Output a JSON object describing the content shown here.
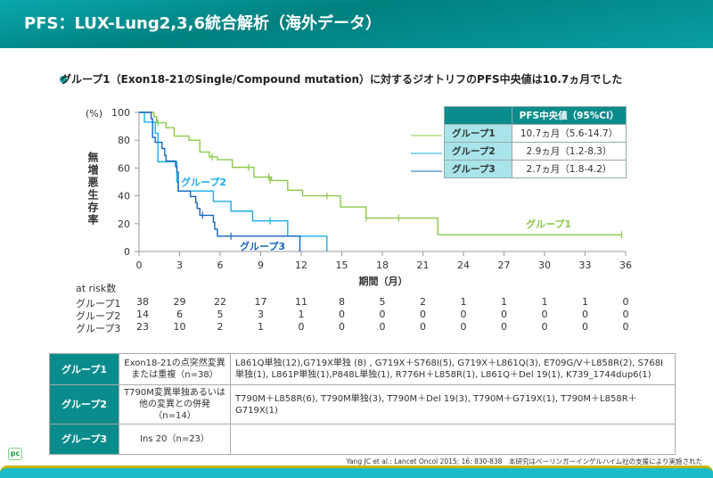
{
  "header": {
    "title": "PFS：LUX-Lung2,3,6統合解析（海外データ）"
  },
  "subtitle": "グループ1（Exon18-21のSingle/Compound mutation）に対するジオトリフのPFS中央値は10.7ヵ月でした",
  "colors": {
    "group1": "#8cc84b",
    "group2": "#1aaee8",
    "group3": "#1565c0",
    "teal": "#0a8c8c"
  },
  "chart_data": {
    "type": "line",
    "subtype": "kaplan-meier step",
    "ylabel": "無増悪生存率",
    "yunit": "(%)",
    "xlabel": "期間（月）",
    "xlim": [
      0,
      36
    ],
    "ylim": [
      0,
      100
    ],
    "xticks": [
      0,
      3,
      6,
      9,
      12,
      15,
      18,
      21,
      24,
      27,
      30,
      33,
      36
    ],
    "yticks": [
      0,
      20,
      40,
      60,
      80,
      100
    ],
    "series": [
      {
        "name": "グループ1",
        "color": "#8cc84b",
        "steps": [
          [
            0,
            100
          ],
          [
            1.1,
            97
          ],
          [
            1.3,
            92.6
          ],
          [
            2,
            89
          ],
          [
            2.6,
            83
          ],
          [
            3.7,
            80
          ],
          [
            4.5,
            71.5
          ],
          [
            5.2,
            68
          ],
          [
            5.8,
            66
          ],
          [
            6.9,
            60.5
          ],
          [
            8.5,
            53.5
          ],
          [
            9.8,
            51
          ],
          [
            11,
            44
          ],
          [
            12.1,
            40
          ],
          [
            14.9,
            32
          ],
          [
            16.8,
            24
          ],
          [
            22.1,
            12
          ]
        ],
        "end": 35.7,
        "censored": [
          [
            1.4,
            92.6
          ],
          [
            5.4,
            68
          ],
          [
            8.1,
            60.5
          ],
          [
            9.6,
            53.5
          ],
          [
            9.7,
            51
          ],
          [
            13.9,
            40
          ],
          [
            16.8,
            24
          ],
          [
            19.2,
            24
          ],
          [
            35.7,
            12
          ]
        ]
      },
      {
        "name": "グループ2",
        "color": "#1aaee8",
        "steps": [
          [
            0,
            100
          ],
          [
            0.4,
            93
          ],
          [
            1.2,
            85
          ],
          [
            1.4,
            64.5
          ],
          [
            2.8,
            50
          ],
          [
            2.9,
            43.5
          ],
          [
            5.5,
            36
          ],
          [
            6.8,
            29
          ],
          [
            8.4,
            22
          ],
          [
            11,
            11
          ],
          [
            13.9,
            0
          ]
        ],
        "end": 13.9,
        "censored": [
          [
            9.7,
            22
          ]
        ]
      },
      {
        "name": "グループ3",
        "color": "#1565c0",
        "steps": [
          [
            0,
            100
          ],
          [
            0.9,
            95.5
          ],
          [
            1,
            82
          ],
          [
            1.2,
            78.5
          ],
          [
            1.7,
            74
          ],
          [
            1.9,
            69
          ],
          [
            2,
            65
          ],
          [
            2.7,
            61
          ],
          [
            2.8,
            57
          ],
          [
            2.9,
            43.5
          ],
          [
            3.8,
            39.5
          ],
          [
            4.2,
            35
          ],
          [
            4.3,
            31
          ],
          [
            4.5,
            26
          ],
          [
            5.5,
            21
          ],
          [
            5.6,
            16
          ],
          [
            5.8,
            11
          ],
          [
            11.9,
            0
          ]
        ],
        "end": 11.9,
        "censored": [
          [
            4.7,
            26
          ],
          [
            6.8,
            11
          ]
        ]
      }
    ],
    "annotations": [
      "グループ1",
      "グループ2",
      "グループ3"
    ]
  },
  "median_table": {
    "header": "PFS中央値（95%CI）",
    "rows": [
      {
        "group": "グループ1",
        "value": "10.7ヵ月（5.6-14.7）"
      },
      {
        "group": "グループ2",
        "value": "2.9ヵ月（1.2-8.3）"
      },
      {
        "group": "グループ3",
        "value": "2.7ヵ月（1.8-4.2）"
      }
    ]
  },
  "risk": {
    "title": "at risk数",
    "rows": [
      {
        "label": "グループ1",
        "values": [
          "38",
          "29",
          "22",
          "17",
          "11",
          "8",
          "5",
          "2",
          "1",
          "1",
          "1",
          "1",
          "0"
        ]
      },
      {
        "label": "グループ2",
        "values": [
          "14",
          "6",
          "5",
          "3",
          "1",
          "0",
          "0",
          "0",
          "0",
          "0",
          "0",
          "0",
          "0"
        ]
      },
      {
        "label": "グループ3",
        "values": [
          "23",
          "10",
          "2",
          "1",
          "0",
          "0",
          "0",
          "0",
          "0",
          "0",
          "0",
          "0",
          "0"
        ]
      }
    ]
  },
  "groups_table": [
    {
      "group": "グループ1",
      "def": "Exon18-21の点突然変異または重複（n=38）",
      "detail": "L861Q単独(12),G719X単独 (8) , G719X＋S768I(5), G719X＋L861Q(3), E709G/V＋L858R(2), S768I単独(1), L861P単独(1),P848L単独(1), R776H＋L858R(1), L861Q＋Del 19(1), K739_1744dup6(1)"
    },
    {
      "group": "グループ2",
      "def": "T790M変異単独あるいは他の変異との併発（n=14）",
      "detail": "T790M＋L858R(6), T790M単独(3), T790M＋Del 19(3), T790M＋G719X(1), T790M＋L858R＋G719X(1)"
    },
    {
      "group": "グループ3",
      "def": "Ins 20（n=23）",
      "detail": ""
    }
  ],
  "citation": "Yang JC et al.: Lancet Oncol 2015; 16: 830-838　本研究はベーリンガーインゲルハイム社の支援により実施された",
  "logo": "pc"
}
